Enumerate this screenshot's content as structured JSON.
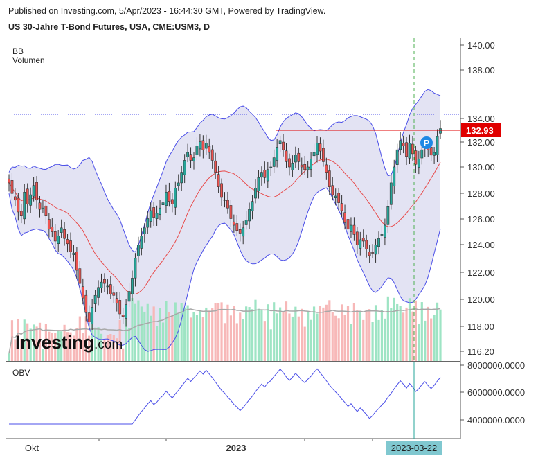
{
  "header": {
    "published": "Published on Investing.com, 5/Apr/2023 - 16:44:30 GMT, Powered by TradingView.",
    "symbol": "US 30-Jahre T-Bond Futures, USA, CME:USM3, D"
  },
  "indicators": {
    "bb": "BB",
    "volume": "Volumen",
    "obv": "OBV"
  },
  "logo": {
    "main": "Investing",
    "suffix": ".com"
  },
  "colors": {
    "up": "#26a69a",
    "down": "#ef5350",
    "band": "#4a4ee8",
    "basis": "#e84a4a",
    "band_fill": "#e3e3f3",
    "price_line": "#e00000",
    "vol_up": "#9ee4c4",
    "vol_down": "#f7b8b8",
    "vol_ma": "#a8a8a8",
    "obv": "#4a4ee8",
    "crosshair": "#4caf50"
  },
  "chart_data": [
    {
      "type": "candlestick",
      "title": "US 30-Jahre T-Bond Futures, USA, CME:USM3, D",
      "ylim": [
        115.5,
        141.0
      ],
      "y_ticks": [
        "140.00",
        "138.00",
        "134.00",
        "132.00",
        "130.00",
        "128.00",
        "126.00",
        "124.00",
        "122.00",
        "120.00",
        "118.00",
        "116.20"
      ],
      "last_price": "132.93",
      "marker": "P",
      "x_labels": [
        "Okt",
        "2023"
      ],
      "crosshair_label": "2023-03-22",
      "close": [
        128.8,
        128.0,
        127.5,
        126.6,
        126.3,
        128.1,
        127.2,
        127.9,
        128.6,
        127.5,
        126.8,
        126.9,
        126.3,
        125.3,
        125.1,
        124.4,
        124.8,
        125.4,
        124.6,
        124.2,
        123.6,
        123.5,
        122.2,
        121.2,
        120.1,
        119.0,
        118.3,
        119.4,
        120.3,
        120.9,
        121.3,
        121.2,
        121.0,
        120.4,
        120.3,
        119.7,
        118.9,
        118.7,
        119.6,
        120.6,
        121.6,
        123.1,
        124.1,
        124.8,
        125.4,
        126.1,
        126.7,
        126.2,
        126.5,
        126.9,
        127.3,
        128.1,
        127.4,
        127.2,
        128.4,
        128.8,
        129.6,
        130.5,
        131.1,
        130.5,
        130.7,
        131.6,
        131.9,
        131.3,
        131.8,
        131.1,
        130.5,
        129.6,
        128.5,
        127.7,
        127.5,
        126.9,
        126.1,
        125.6,
        125.2,
        125.0,
        125.4,
        126.0,
        126.8,
        127.4,
        128.4,
        129.2,
        129.6,
        129.2,
        129.8,
        130.0,
        130.7,
        131.5,
        132.0,
        131.3,
        130.4,
        130.0,
        130.3,
        130.9,
        130.4,
        130.0,
        129.8,
        130.0,
        130.6,
        131.1,
        131.8,
        131.2,
        130.4,
        129.6,
        128.5,
        127.9,
        127.8,
        127.3,
        126.7,
        125.8,
        125.3,
        125.6,
        124.9,
        124.1,
        124.5,
        124.4,
        123.8,
        123.3,
        123.5,
        124.1,
        124.6,
        124.9,
        125.6,
        127.0,
        128.8,
        130.0,
        131.3,
        132.0,
        131.6,
        130.8,
        131.8,
        131.0,
        130.2,
        130.6,
        131.3,
        131.8,
        131.3,
        130.9,
        131.1,
        132.3,
        132.9
      ],
      "volume_scale_note": "",
      "obv_ylim": [
        2900000,
        8000000
      ],
      "obv_ticks": [
        "8000000.0000",
        "6000000.0000",
        "4000000.0000"
      ]
    }
  ]
}
